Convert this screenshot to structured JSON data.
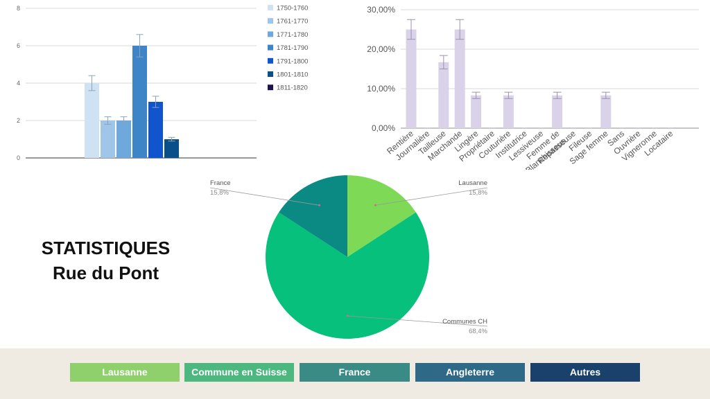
{
  "page_title": {
    "line1": "STATISTIQUES",
    "line2": "Rue du Pont"
  },
  "chart_data": [
    {
      "type": "bar",
      "id": "decades",
      "categories": [
        "1750-1760",
        "1761-1770",
        "1771-1780",
        "1781-1790",
        "1791-1800",
        "1801-1810",
        "1811-1820"
      ],
      "values": [
        4,
        2,
        2,
        6,
        3,
        1,
        0
      ],
      "error": [
        0.4,
        0.2,
        0.2,
        0.6,
        0.3,
        0.1,
        0
      ],
      "colors": [
        "#cfe2f3",
        "#9fc5e8",
        "#6fa8dc",
        "#3d85c6",
        "#1155cc",
        "#0b4f8a",
        "#20124d"
      ],
      "yticks": [
        0,
        2,
        4,
        6,
        8
      ],
      "ylim": [
        0,
        8
      ],
      "legend_position": "right",
      "title": "",
      "xlabel": "",
      "ylabel": ""
    },
    {
      "type": "bar",
      "id": "professions",
      "categories": [
        "Rentière",
        "Journalière",
        "Tailleuse",
        "Marchande",
        "Lingère",
        "Propriétaire",
        "Couturière",
        "Institutrice",
        "Lessiveuse",
        "Femme de Blanchisseus",
        "Repasseuse",
        "Fileuse",
        "Sage femme",
        "Sans",
        "Ouvrière",
        "Vigneronne",
        "Locataire"
      ],
      "values": [
        25,
        0,
        16.7,
        25,
        8.3,
        0,
        8.3,
        0,
        0,
        8.3,
        0,
        0,
        8.3,
        0,
        0,
        0,
        0
      ],
      "error": [
        2.5,
        0,
        1.7,
        2.5,
        0.8,
        0,
        0.8,
        0,
        0,
        0.8,
        0,
        0,
        0.8,
        0,
        0,
        0,
        0
      ],
      "yticks": [
        "0,00%",
        "10,00%",
        "20,00%",
        "30,00%"
      ],
      "ylim": [
        0,
        30
      ],
      "color": "#d9d2e9",
      "title": "",
      "xlabel": "",
      "ylabel": ""
    },
    {
      "type": "pie",
      "id": "origins",
      "slices": [
        {
          "name": "Lausanne",
          "value": 15.8,
          "pct_label": "15,8%",
          "color": "#7ed957"
        },
        {
          "name": "Communes CH",
          "value": 68.4,
          "pct_label": "68,4%",
          "color": "#06c07c"
        },
        {
          "name": "France",
          "value": 15.8,
          "pct_label": "15,8%",
          "color": "#0b8a83"
        }
      ]
    }
  ],
  "nav": {
    "buttons": [
      {
        "label": "Lausanne",
        "color": "#8fd06d"
      },
      {
        "label": "Commune en Suisse",
        "color": "#4cb87f"
      },
      {
        "label": "France",
        "color": "#3a8a85"
      },
      {
        "label": "Angleterre",
        "color": "#2e6a88"
      },
      {
        "label": "Autres",
        "color": "#1a416c"
      }
    ]
  }
}
